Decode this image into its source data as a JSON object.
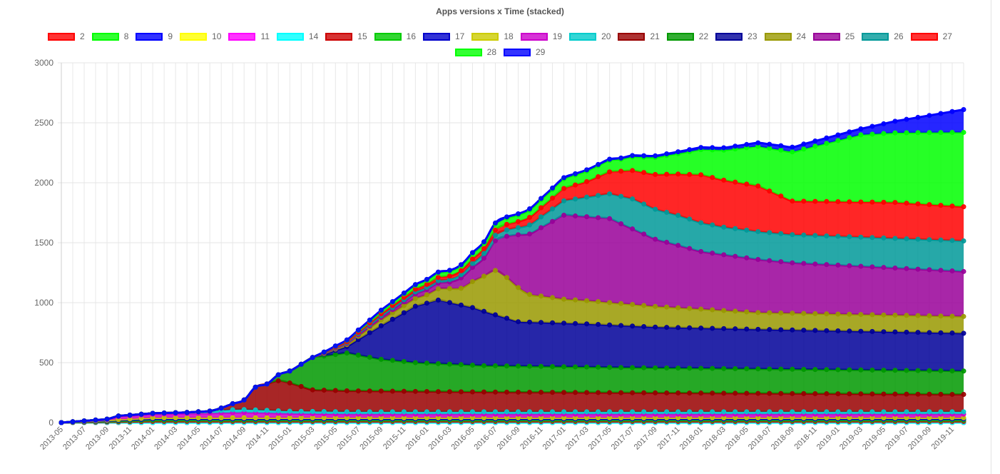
{
  "chart_data": {
    "type": "area",
    "stacked": true,
    "title": "Apps versions x Time (stacked)",
    "xlabel": "",
    "ylabel": "",
    "ylim": [
      0,
      3000
    ],
    "yticks": [
      0,
      500,
      1000,
      1500,
      2000,
      2500,
      3000
    ],
    "grid": true,
    "legend_position": "top",
    "x_range": [
      "2013-05",
      "2019-12"
    ],
    "xtick_labels": [
      "2013-05",
      "2013-07",
      "2013-09",
      "2013-11",
      "2014-01",
      "2014-03",
      "2014-05",
      "2014-07",
      "2014-09",
      "2014-11",
      "2015-01",
      "2015-03",
      "2015-05",
      "2015-07",
      "2015-09",
      "2015-11",
      "2016-01",
      "2016-03",
      "2016-05",
      "2016-07",
      "2016-09",
      "2016-11",
      "2017-01",
      "2017-03",
      "2017-05",
      "2017-07",
      "2017-09",
      "2017-11",
      "2018-01",
      "2018-03",
      "2018-05",
      "2018-07",
      "2018-09",
      "2018-11",
      "2019-01",
      "2019-03",
      "2019-05",
      "2019-07",
      "2019-09",
      "2019-11"
    ],
    "series": [
      {
        "name": "2",
        "color": "#ff0000",
        "keys": [
          [
            "2013-05",
            0
          ],
          [
            "2019-12",
            0
          ]
        ]
      },
      {
        "name": "8",
        "color": "#00ff00",
        "keys": [
          [
            "2013-05",
            0
          ],
          [
            "2019-12",
            0
          ]
        ]
      },
      {
        "name": "9",
        "color": "#0000ff",
        "keys": [
          [
            "2013-05",
            0
          ],
          [
            "2019-12",
            0
          ]
        ]
      },
      {
        "name": "10",
        "color": "#ffff00",
        "keys": [
          [
            "2013-05",
            0
          ],
          [
            "2019-12",
            0
          ]
        ]
      },
      {
        "name": "11",
        "color": "#ff00ff",
        "keys": [
          [
            "2013-05",
            0
          ],
          [
            "2019-12",
            0
          ]
        ]
      },
      {
        "name": "14",
        "color": "#00ffff",
        "keys": [
          [
            "2013-05",
            0
          ],
          [
            "2019-12",
            0
          ]
        ]
      },
      {
        "name": "15",
        "color": "#cc0000",
        "keys": [
          [
            "2013-05",
            0
          ],
          [
            "2013-09",
            5
          ],
          [
            "2014-01",
            10
          ],
          [
            "2014-09",
            10
          ],
          [
            "2019-12",
            10
          ]
        ]
      },
      {
        "name": "16",
        "color": "#00cc00",
        "keys": [
          [
            "2013-05",
            0
          ],
          [
            "2013-09",
            5
          ],
          [
            "2014-01",
            10
          ],
          [
            "2014-09",
            10
          ],
          [
            "2019-12",
            10
          ]
        ]
      },
      {
        "name": "17",
        "color": "#0000cc",
        "keys": [
          [
            "2013-05",
            0
          ],
          [
            "2013-09",
            5
          ],
          [
            "2014-01",
            10
          ],
          [
            "2014-09",
            10
          ],
          [
            "2019-12",
            10
          ]
        ]
      },
      {
        "name": "18",
        "color": "#cccc00",
        "keys": [
          [
            "2013-05",
            0
          ],
          [
            "2014-01",
            10
          ],
          [
            "2014-09",
            10
          ],
          [
            "2019-12",
            10
          ]
        ]
      },
      {
        "name": "19",
        "color": "#cc00cc",
        "keys": [
          [
            "2013-05",
            0
          ],
          [
            "2013-09",
            5
          ],
          [
            "2013-10",
            25
          ],
          [
            "2014-01",
            30
          ],
          [
            "2014-07",
            40
          ],
          [
            "2014-09",
            45
          ],
          [
            "2015-01",
            35
          ],
          [
            "2015-06",
            30
          ],
          [
            "2019-12",
            30
          ]
        ]
      },
      {
        "name": "20",
        "color": "#00cccc",
        "keys": [
          [
            "2013-05",
            0
          ],
          [
            "2013-10",
            5
          ],
          [
            "2014-04",
            10
          ],
          [
            "2014-08",
            25
          ],
          [
            "2015-01",
            20
          ],
          [
            "2015-06",
            20
          ],
          [
            "2019-12",
            20
          ]
        ]
      },
      {
        "name": "21",
        "color": "#990000",
        "keys": [
          [
            "2013-05",
            0
          ],
          [
            "2014-06",
            0
          ],
          [
            "2014-07",
            20
          ],
          [
            "2014-09",
            80
          ],
          [
            "2014-10",
            190
          ],
          [
            "2014-12",
            250
          ],
          [
            "2015-01",
            235
          ],
          [
            "2015-03",
            180
          ],
          [
            "2015-06",
            175
          ],
          [
            "2016-06",
            165
          ],
          [
            "2019-12",
            145
          ]
        ]
      },
      {
        "name": "22",
        "color": "#009900",
        "keys": [
          [
            "2013-05",
            0
          ],
          [
            "2014-11",
            0
          ],
          [
            "2015-01",
            100
          ],
          [
            "2015-03",
            270
          ],
          [
            "2015-06",
            315
          ],
          [
            "2015-09",
            265
          ],
          [
            "2015-12",
            240
          ],
          [
            "2016-06",
            220
          ],
          [
            "2017-06",
            210
          ],
          [
            "2019-12",
            195
          ]
        ]
      },
      {
        "name": "23",
        "color": "#000099",
        "keys": [
          [
            "2013-05",
            0
          ],
          [
            "2015-03",
            0
          ],
          [
            "2015-04",
            15
          ],
          [
            "2015-06",
            55
          ],
          [
            "2015-09",
            280
          ],
          [
            "2015-12",
            470
          ],
          [
            "2016-02",
            530
          ],
          [
            "2016-05",
            480
          ],
          [
            "2016-09",
            370
          ],
          [
            "2017-03",
            360
          ],
          [
            "2017-09",
            340
          ],
          [
            "2018-06",
            330
          ],
          [
            "2019-12",
            315
          ]
        ]
      },
      {
        "name": "24",
        "color": "#999900",
        "keys": [
          [
            "2013-05",
            0
          ],
          [
            "2015-03",
            0
          ],
          [
            "2015-06",
            15
          ],
          [
            "2015-09",
            50
          ],
          [
            "2016-01",
            70
          ],
          [
            "2016-04",
            140
          ],
          [
            "2016-07",
            370
          ],
          [
            "2016-08",
            340
          ],
          [
            "2016-10",
            230
          ],
          [
            "2017-01",
            200
          ],
          [
            "2017-07",
            180
          ],
          [
            "2018-06",
            140
          ],
          [
            "2019-12",
            140
          ]
        ]
      },
      {
        "name": "25",
        "color": "#990099",
        "keys": [
          [
            "2013-05",
            0
          ],
          [
            "2015-03",
            0
          ],
          [
            "2015-09",
            20
          ],
          [
            "2016-03",
            55
          ],
          [
            "2016-06",
            150
          ],
          [
            "2016-09",
            440
          ],
          [
            "2017-01",
            700
          ],
          [
            "2017-05",
            700
          ],
          [
            "2017-09",
            560
          ],
          [
            "2018-01",
            480
          ],
          [
            "2018-09",
            420
          ],
          [
            "2019-12",
            375
          ]
        ]
      },
      {
        "name": "26",
        "color": "#009999",
        "keys": [
          [
            "2013-05",
            0
          ],
          [
            "2015-03",
            0
          ],
          [
            "2015-09",
            15
          ],
          [
            "2016-03",
            20
          ],
          [
            "2016-06",
            40
          ],
          [
            "2016-09",
            60
          ],
          [
            "2017-01",
            120
          ],
          [
            "2017-07",
            250
          ],
          [
            "2017-11",
            250
          ],
          [
            "2018-03",
            230
          ],
          [
            "2018-09",
            235
          ],
          [
            "2019-12",
            255
          ]
        ]
      },
      {
        "name": "27",
        "color": "#ff0000",
        "keys": [
          [
            "2013-05",
            0
          ],
          [
            "2015-03",
            0
          ],
          [
            "2015-09",
            15
          ],
          [
            "2016-03",
            30
          ],
          [
            "2016-09",
            50
          ],
          [
            "2017-03",
            130
          ],
          [
            "2017-09",
            290
          ],
          [
            "2018-01",
            400
          ],
          [
            "2018-06",
            380
          ],
          [
            "2018-09",
            280
          ],
          [
            "2019-06",
            300
          ],
          [
            "2019-12",
            285
          ]
        ]
      },
      {
        "name": "28",
        "color": "#00ff00",
        "keys": [
          [
            "2013-05",
            0
          ],
          [
            "2015-03",
            0
          ],
          [
            "2015-09",
            25
          ],
          [
            "2016-03",
            40
          ],
          [
            "2016-09",
            55
          ],
          [
            "2017-01",
            80
          ],
          [
            "2017-06",
            100
          ],
          [
            "2017-11",
            170
          ],
          [
            "2018-03",
            250
          ],
          [
            "2018-09",
            410
          ],
          [
            "2019-03",
            560
          ],
          [
            "2019-12",
            620
          ]
        ]
      },
      {
        "name": "29",
        "color": "#0000ff",
        "keys": [
          [
            "2013-05",
            0
          ],
          [
            "2015-03",
            0
          ],
          [
            "2015-09",
            5
          ],
          [
            "2016-09",
            10
          ],
          [
            "2017-06",
            10
          ],
          [
            "2018-03",
            20
          ],
          [
            "2018-09",
            40
          ],
          [
            "2019-03",
            50
          ],
          [
            "2019-12",
            190
          ]
        ]
      }
    ]
  }
}
